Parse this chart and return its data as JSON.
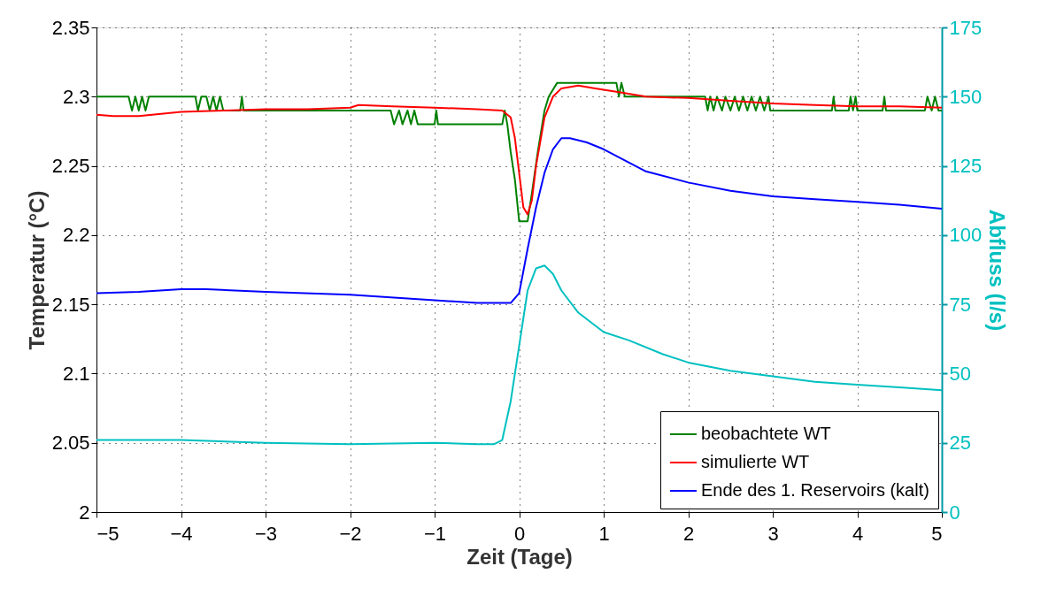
{
  "chart_data": {
    "type": "line",
    "xlabel": "Zeit (Tage)",
    "ylabel": "Temperatur (°C)",
    "y2label": "Abfluss (l/s)",
    "xlim": [
      -5,
      5
    ],
    "xticks": [
      {
        "value": -5,
        "label": "−5"
      },
      {
        "value": -4,
        "label": "−4"
      },
      {
        "value": -3,
        "label": "−3"
      },
      {
        "value": -2,
        "label": "−2"
      },
      {
        "value": -1,
        "label": "−1"
      },
      0,
      1,
      2,
      3,
      4,
      5
    ],
    "ylim": [
      2,
      2.35
    ],
    "yticks": [
      2,
      2.05,
      2.1,
      2.15,
      2.2,
      2.25,
      2.3,
      2.35
    ],
    "y2lim": [
      0,
      175
    ],
    "y2ticks": [
      0,
      25,
      50,
      75,
      100,
      125,
      150,
      175
    ],
    "grid": true,
    "legend": "bottom right",
    "line_style": "solid",
    "marker": "none",
    "series": [
      {
        "name": "beobachtete WT",
        "color": "#008000",
        "x": [
          -5,
          -4.62,
          -4.58,
          -4.54,
          -4.5,
          -4.46,
          -4.42,
          -4.38,
          -3.83,
          -3.8,
          -3.76,
          -3.7,
          -3.66,
          -3.62,
          -3.58,
          -3.54,
          -3.5,
          -3.3,
          -3.28,
          -3.26,
          -1.52,
          -1.48,
          -1.42,
          -1.38,
          -1.32,
          -1.28,
          -1.24,
          -1.2,
          -1.0,
          -0.98,
          -0.96,
          -0.2,
          -0.17,
          -0.14,
          -0.1,
          -0.05,
          0.0,
          0.1,
          0.15,
          0.22,
          0.3,
          0.35,
          0.45,
          1.15,
          1.18,
          1.21,
          1.25,
          2.2,
          2.23,
          2.26,
          2.3,
          2.34,
          2.4,
          2.44,
          2.5,
          2.55,
          2.6,
          2.65,
          2.7,
          2.75,
          2.8,
          2.85,
          2.9,
          2.95,
          2.97,
          3.7,
          3.72,
          3.74,
          3.9,
          3.92,
          3.95,
          3.98,
          4.0,
          4.3,
          4.32,
          4.34,
          4.8,
          4.83,
          4.88,
          4.92,
          4.96,
          5.0
        ],
        "values": [
          2.3,
          2.3,
          2.29,
          2.3,
          2.29,
          2.3,
          2.29,
          2.3,
          2.3,
          2.29,
          2.3,
          2.3,
          2.29,
          2.3,
          2.29,
          2.3,
          2.29,
          2.29,
          2.3,
          2.29,
          2.29,
          2.28,
          2.29,
          2.28,
          2.29,
          2.28,
          2.29,
          2.28,
          2.28,
          2.29,
          2.28,
          2.28,
          2.29,
          2.28,
          2.26,
          2.24,
          2.21,
          2.21,
          2.23,
          2.26,
          2.29,
          2.3,
          2.31,
          2.31,
          2.3,
          2.31,
          2.3,
          2.3,
          2.29,
          2.3,
          2.29,
          2.3,
          2.29,
          2.3,
          2.29,
          2.3,
          2.29,
          2.3,
          2.29,
          2.3,
          2.29,
          2.3,
          2.29,
          2.3,
          2.29,
          2.29,
          2.3,
          2.29,
          2.29,
          2.3,
          2.29,
          2.3,
          2.29,
          2.29,
          2.3,
          2.29,
          2.29,
          2.3,
          2.29,
          2.3,
          2.29,
          2.29
        ]
      },
      {
        "name": "simulierte WT",
        "color": "#ff0000",
        "x": [
          -5,
          -4.8,
          -4.5,
          -4,
          -3.5,
          -3,
          -2.5,
          -2,
          -1.9,
          -1.5,
          -1,
          -0.5,
          -0.2,
          -0.1,
          -0.05,
          0,
          0.05,
          0.1,
          0.15,
          0.2,
          0.3,
          0.4,
          0.5,
          0.7,
          0.9,
          1.2,
          1.5,
          2,
          2.5,
          3,
          3.5,
          4,
          4.5,
          5
        ],
        "values": [
          2.287,
          2.286,
          2.286,
          2.289,
          2.29,
          2.291,
          2.291,
          2.292,
          2.294,
          2.293,
          2.292,
          2.291,
          2.29,
          2.285,
          2.27,
          2.245,
          2.22,
          2.215,
          2.225,
          2.25,
          2.285,
          2.3,
          2.306,
          2.308,
          2.306,
          2.303,
          2.3,
          2.299,
          2.297,
          2.295,
          2.294,
          2.293,
          2.293,
          2.292
        ]
      },
      {
        "name": "Ende des 1. Reservoirs (kalt)",
        "color": "#0000ff",
        "x": [
          -5,
          -4.5,
          -4,
          -3.7,
          -3,
          -2,
          -1,
          -0.5,
          -0.1,
          0,
          0.1,
          0.2,
          0.3,
          0.4,
          0.5,
          0.6,
          0.8,
          1.0,
          1.5,
          2,
          2.5,
          3,
          3.5,
          4,
          4.5,
          5
        ],
        "values": [
          2.158,
          2.159,
          2.161,
          2.161,
          2.159,
          2.157,
          2.153,
          2.151,
          2.151,
          2.158,
          2.19,
          2.22,
          2.245,
          2.262,
          2.27,
          2.27,
          2.267,
          2.262,
          2.246,
          2.238,
          2.232,
          2.228,
          2.226,
          2.224,
          2.222,
          2.219
        ]
      },
      {
        "color": "#00c0c0",
        "axis": "y2",
        "x": [
          -5,
          -4.5,
          -4,
          -3,
          -2,
          -1,
          -0.5,
          -0.3,
          -0.2,
          -0.1,
          0,
          0.1,
          0.2,
          0.3,
          0.4,
          0.5,
          0.7,
          1,
          1.3,
          1.7,
          2,
          2.5,
          3,
          3.5,
          4,
          4.5,
          5
        ],
        "values": [
          26,
          26,
          26,
          25,
          24.5,
          25,
          24.5,
          24.5,
          26,
          40,
          60,
          80,
          88,
          89,
          86,
          80,
          72,
          65,
          62,
          57,
          54,
          51,
          49,
          47,
          46,
          45,
          44
        ]
      }
    ]
  }
}
